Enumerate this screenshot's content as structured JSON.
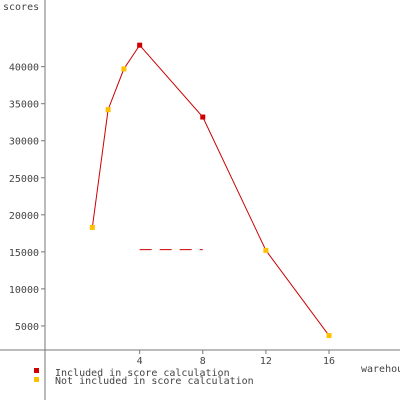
{
  "chart_data": {
    "type": "line",
    "ylabel": "scores",
    "xlabel": "warehouses",
    "xlim": [
      -2,
      20.5
    ],
    "ylim": [
      -5000,
      49000
    ],
    "x_ticks": [
      4,
      8,
      12,
      16
    ],
    "y_ticks": [
      5000,
      10000,
      15000,
      20000,
      25000,
      30000,
      35000,
      40000
    ],
    "grid": false,
    "legend_position": "bottom-left",
    "series": [
      {
        "points": [
          {
            "x": 1,
            "y": 18300,
            "included": false
          },
          {
            "x": 2,
            "y": 34200,
            "included": false
          },
          {
            "x": 3,
            "y": 39700,
            "included": false
          },
          {
            "x": 4,
            "y": 42900,
            "included": true
          },
          {
            "x": 8,
            "y": 33200,
            "included": true
          },
          {
            "x": 12,
            "y": 15200,
            "included": false
          },
          {
            "x": 16,
            "y": 3700,
            "included": false
          }
        ]
      }
    ],
    "reference_line": {
      "y": 15300,
      "x_from": 4,
      "x_to": 8,
      "style": "dashed"
    },
    "legend": [
      {
        "label": "Included in score calculation",
        "color": "#cc0000"
      },
      {
        "label": "Not included in score calculation",
        "color": "#ffc000"
      }
    ]
  },
  "colors": {
    "line": "#cc0000",
    "included": "#cc0000",
    "not_included": "#ffc000",
    "axis": "#777777",
    "text": "#444444"
  }
}
